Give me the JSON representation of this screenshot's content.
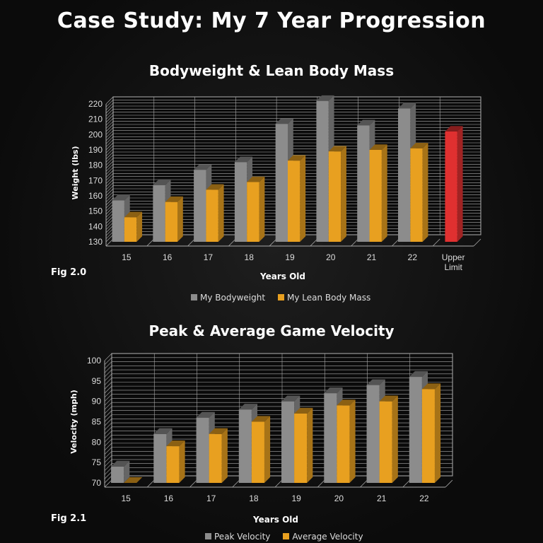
{
  "page_title": "Case Study: My 7 Year Progression",
  "chart_data": [
    {
      "type": "bar",
      "title": "Bodyweight & Lean Body Mass",
      "figure_label": "Fig 2.0",
      "xlabel": "Years Old",
      "ylabel": "Weight (lbs)",
      "ylim": [
        130,
        220
      ],
      "yticks": [
        130,
        140,
        150,
        160,
        170,
        180,
        190,
        200,
        210,
        220
      ],
      "categories": [
        "15",
        "16",
        "17",
        "18",
        "19",
        "20",
        "21",
        "22",
        "Upper Limit"
      ],
      "series": [
        {
          "name": "My Bodyweight",
          "color": "#8c8c8c",
          "values": [
            157,
            167,
            177,
            182,
            207,
            222,
            206,
            217,
            null
          ]
        },
        {
          "name": "My Lean Body Mass",
          "color": "#e8a020",
          "values": [
            146,
            156,
            164,
            169,
            183,
            189,
            190,
            191,
            null
          ]
        },
        {
          "name": "",
          "color": "#e03030",
          "values": [
            null,
            null,
            null,
            null,
            null,
            null,
            null,
            null,
            202
          ]
        }
      ],
      "grid": true,
      "legend": "bottom",
      "style": "3d-column"
    },
    {
      "type": "bar",
      "title": "Peak & Average Game Velocity",
      "figure_label": "Fig 2.1",
      "xlabel": "Years Old",
      "ylabel": "Velocity (mph)",
      "ylim": [
        70,
        100
      ],
      "yticks": [
        70,
        75,
        80,
        85,
        90,
        95,
        100
      ],
      "categories": [
        "15",
        "16",
        "17",
        "18",
        "19",
        "20",
        "21",
        "22"
      ],
      "series": [
        {
          "name": "Peak Velocity",
          "color": "#8c8c8c",
          "values": [
            74,
            82,
            86,
            88,
            90,
            92,
            94,
            96
          ]
        },
        {
          "name": "Average Velocity",
          "color": "#e8a020",
          "values": [
            70,
            79,
            82,
            85,
            87,
            89,
            90,
            93
          ]
        }
      ],
      "grid": true,
      "legend": "bottom",
      "style": "3d-column"
    }
  ]
}
